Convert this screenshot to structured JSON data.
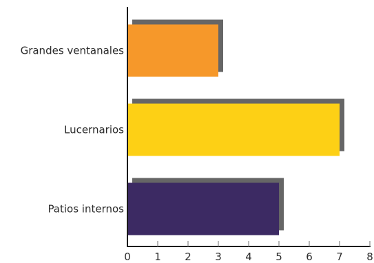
{
  "chart_data": {
    "type": "bar",
    "orientation": "horizontal",
    "categories": [
      "Grandes ventanales",
      "Lucernarios",
      "Patios internos"
    ],
    "values": [
      3,
      7,
      5
    ],
    "colors": [
      "#F6982A",
      "#FDD015",
      "#3C2A63"
    ],
    "shadow_color": "#666666",
    "axis_color": "#1a1a1a",
    "xlim": [
      0,
      8
    ],
    "x_ticks": [
      "0",
      "1",
      "2",
      "3",
      "4",
      "5",
      "6",
      "7",
      "8"
    ],
    "title": "",
    "xlabel": "",
    "ylabel": "",
    "grid": false,
    "legend": "none"
  }
}
